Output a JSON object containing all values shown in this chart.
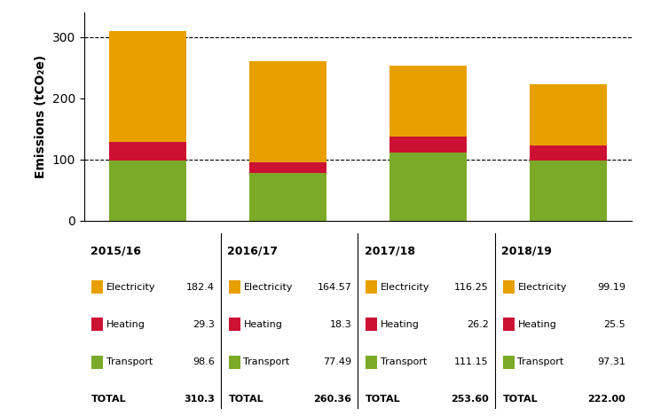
{
  "years": [
    "2015/16",
    "2016/17",
    "2017/18",
    "2018/19"
  ],
  "electricity": [
    182.4,
    164.57,
    116.25,
    99.19
  ],
  "heating": [
    29.3,
    18.3,
    26.2,
    25.5
  ],
  "transport": [
    98.6,
    77.49,
    111.15,
    97.31
  ],
  "totals_str": [
    "310.3",
    "260.36",
    "253.60",
    "222.00"
  ],
  "elec_str": [
    "182.4",
    "164.57",
    "116.25",
    "99.19"
  ],
  "heat_str": [
    "29.3",
    "18.3",
    "26.2",
    "25.5"
  ],
  "trans_str": [
    "98.6",
    "77.49",
    "111.15",
    "97.31"
  ],
  "color_electricity": "#E8A000",
  "color_heating": "#CC1133",
  "color_transport": "#7AAA28",
  "ylabel": "Emissions (tCO₂e)",
  "ylim": [
    0,
    340
  ],
  "yticks": [
    0,
    100,
    200,
    300
  ],
  "grid_lines": [
    100,
    300
  ],
  "bar_width": 0.55,
  "figsize": [
    7.27,
    4.69
  ],
  "dpi": 100,
  "background_color": "#ffffff"
}
